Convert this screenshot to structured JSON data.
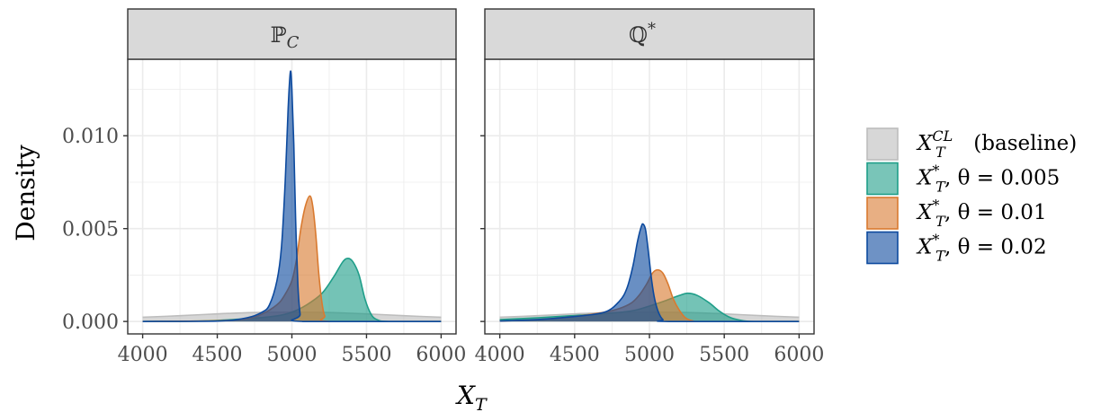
{
  "chart_data": [
    {
      "type": "area",
      "panel_label": {
        "base": "ℙ",
        "sub": "C",
        "sup": ""
      },
      "xlabel": {
        "base": "X",
        "sub": "T"
      },
      "ylabel": "Density",
      "xlim": [
        3900,
        6100
      ],
      "ylim": [
        -0.00067,
        0.01412
      ],
      "x_ticks": [
        "4000",
        "4500",
        "5000",
        "5500",
        "6000"
      ],
      "y_ticks": [
        "0.000",
        "0.005",
        "0.010"
      ],
      "grid": true,
      "series": [
        {
          "key": "baseline",
          "points": [
            [
              4000,
              0.00023
            ],
            [
              4250,
              0.00031
            ],
            [
              4500,
              0.00041
            ],
            [
              4750,
              0.00048
            ],
            [
              5000,
              0.0005
            ],
            [
              5250,
              0.00048
            ],
            [
              5500,
              0.00041
            ],
            [
              5750,
              0.00031
            ],
            [
              6000,
              0.00023
            ]
          ]
        },
        {
          "key": "theta_0005",
          "points": [
            [
              4000,
              0
            ],
            [
              4400,
              3e-05
            ],
            [
              4700,
              0.00015
            ],
            [
              4900,
              0.0003
            ],
            [
              5000,
              0.0005
            ],
            [
              5100,
              0.0009
            ],
            [
              5200,
              0.0015
            ],
            [
              5280,
              0.0024
            ],
            [
              5340,
              0.0032
            ],
            [
              5376,
              0.0034
            ],
            [
              5410,
              0.0032
            ],
            [
              5450,
              0.0025
            ],
            [
              5490,
              0.0012
            ],
            [
              5530,
              0.0004
            ],
            [
              5570,
              0.0001
            ],
            [
              5650,
              0
            ],
            [
              6000,
              0
            ]
          ]
        },
        {
          "key": "theta_001",
          "points": [
            [
              4000,
              0
            ],
            [
              4500,
              4e-05
            ],
            [
              4700,
              0.00015
            ],
            [
              4800,
              0.0004
            ],
            [
              4900,
              0.0009
            ],
            [
              4950,
              0.0014
            ],
            [
              5000,
              0.0022
            ],
            [
              5030,
              0.0033
            ],
            [
              5060,
              0.005
            ],
            [
              5090,
              0.0062
            ],
            [
              5120,
              0.00676
            ],
            [
              5140,
              0.0062
            ],
            [
              5160,
              0.0047
            ],
            [
              5180,
              0.0026
            ],
            [
              5200,
              0.0011
            ],
            [
              5220,
              0.0003
            ],
            [
              5260,
              0
            ],
            [
              6000,
              0
            ]
          ]
        },
        {
          "key": "theta_002",
          "points": [
            [
              4000,
              0
            ],
            [
              4500,
              2e-05
            ],
            [
              4700,
              0.0002
            ],
            [
              4800,
              0.0005
            ],
            [
              4850,
              0.0009
            ],
            [
              4900,
              0.0022
            ],
            [
              4930,
              0.004
            ],
            [
              4955,
              0.0075
            ],
            [
              4975,
              0.0115
            ],
            [
              4990,
              0.01345
            ],
            [
              5000,
              0.0125
            ],
            [
              5013,
              0.0095
            ],
            [
              5025,
              0.0055
            ],
            [
              5040,
              0.002
            ],
            [
              5055,
              0.0004
            ],
            [
              5070,
              0
            ],
            [
              6000,
              0
            ]
          ]
        }
      ]
    },
    {
      "type": "area",
      "panel_label": {
        "base": "ℚ",
        "sub": "",
        "sup": "*"
      },
      "xlim": [
        3900,
        6100
      ],
      "ylim": [
        -0.00067,
        0.01412
      ],
      "x_ticks": [
        "4000",
        "4500",
        "5000",
        "5500",
        "6000"
      ],
      "grid": true,
      "series": [
        {
          "key": "baseline",
          "points": [
            [
              4000,
              0.00023
            ],
            [
              4250,
              0.00031
            ],
            [
              4500,
              0.00041
            ],
            [
              4750,
              0.00048
            ],
            [
              5000,
              0.0005
            ],
            [
              5250,
              0.00048
            ],
            [
              5500,
              0.00041
            ],
            [
              5750,
              0.00031
            ],
            [
              6000,
              0.00023
            ]
          ]
        },
        {
          "key": "theta_0005",
          "points": [
            [
              4000,
              0.0001
            ],
            [
              4250,
              0.0002
            ],
            [
              4500,
              0.00032
            ],
            [
              4750,
              0.00045
            ],
            [
              4900,
              0.0006
            ],
            [
              5000,
              0.00083
            ],
            [
              5100,
              0.0011
            ],
            [
              5200,
              0.0014
            ],
            [
              5255,
              0.00152
            ],
            [
              5320,
              0.0014
            ],
            [
              5400,
              0.001
            ],
            [
              5460,
              0.0006
            ],
            [
              5530,
              0.00025
            ],
            [
              5600,
              8e-05
            ],
            [
              5700,
              0
            ],
            [
              6000,
              0
            ]
          ]
        },
        {
          "key": "theta_001",
          "points": [
            [
              4000,
              3e-05
            ],
            [
              4250,
              0.0001
            ],
            [
              4500,
              0.00027
            ],
            [
              4700,
              0.0005
            ],
            [
              4800,
              0.0007
            ],
            [
              4880,
              0.001
            ],
            [
              4930,
              0.0014
            ],
            [
              4980,
              0.002
            ],
            [
              5020,
              0.0026
            ],
            [
              5054,
              0.00278
            ],
            [
              5090,
              0.0026
            ],
            [
              5125,
              0.002
            ],
            [
              5160,
              0.0012
            ],
            [
              5200,
              0.0006
            ],
            [
              5240,
              0.0002
            ],
            [
              5290,
              3e-05
            ],
            [
              5350,
              0
            ],
            [
              6000,
              0
            ]
          ]
        },
        {
          "key": "theta_002",
          "points": [
            [
              4000,
              3e-05
            ],
            [
              4250,
              0.0001
            ],
            [
              4500,
              0.00027
            ],
            [
              4700,
              0.0005
            ],
            [
              4800,
              0.0011
            ],
            [
              4850,
              0.0018
            ],
            [
              4890,
              0.003
            ],
            [
              4920,
              0.0043
            ],
            [
              4945,
              0.0051
            ],
            [
              4958,
              0.00524
            ],
            [
              4975,
              0.0049
            ],
            [
              4995,
              0.0036
            ],
            [
              5015,
              0.0022
            ],
            [
              5035,
              0.0012
            ],
            [
              5060,
              0.0005
            ],
            [
              5090,
              0.0001
            ],
            [
              5130,
              0
            ],
            [
              6000,
              0
            ]
          ]
        }
      ]
    }
  ],
  "legend": [
    {
      "key": "baseline",
      "base": "X",
      "sub": "T",
      "sup": "CL",
      "rest": " (baseline)",
      "color": "#bdbdbd"
    },
    {
      "key": "theta_0005",
      "base": "X",
      "sub": "T",
      "sup": "*",
      "rest": ", θ = 0.005",
      "color": "#1f9e89"
    },
    {
      "key": "theta_001",
      "base": "X",
      "sub": "T",
      "sup": "*",
      "rest": ", θ = 0.01",
      "color": "#d97a30"
    },
    {
      "key": "theta_002",
      "base": "X",
      "sub": "T",
      "sup": "*",
      "rest": ", θ = 0.02",
      "color": "#0d4a9e"
    }
  ]
}
